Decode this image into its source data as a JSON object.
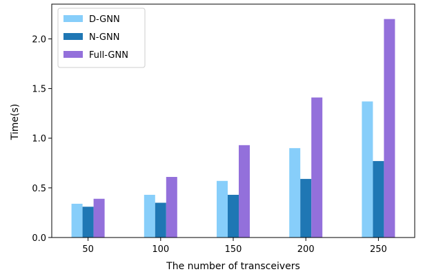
{
  "chart_data": {
    "type": "bar",
    "title": "",
    "xlabel": "The number of transceivers",
    "ylabel": "Time(s)",
    "categories": [
      "50",
      "100",
      "150",
      "200",
      "250"
    ],
    "ylim": [
      0,
      2.35
    ],
    "yticks": [
      "0.0",
      "0.5",
      "1.0",
      "1.5",
      "2.0"
    ],
    "grid": false,
    "legend_position": "top-left",
    "series": [
      {
        "name": "D-GNN",
        "color": "#87cefa",
        "values": [
          0.34,
          0.43,
          0.57,
          0.9,
          1.37
        ]
      },
      {
        "name": "N-GNN",
        "color": "#1f77b4",
        "values": [
          0.31,
          0.35,
          0.43,
          0.59,
          0.77
        ]
      },
      {
        "name": "Full-GNN",
        "color": "#9370db",
        "values": [
          0.39,
          0.61,
          0.93,
          1.41,
          2.2
        ]
      }
    ]
  }
}
